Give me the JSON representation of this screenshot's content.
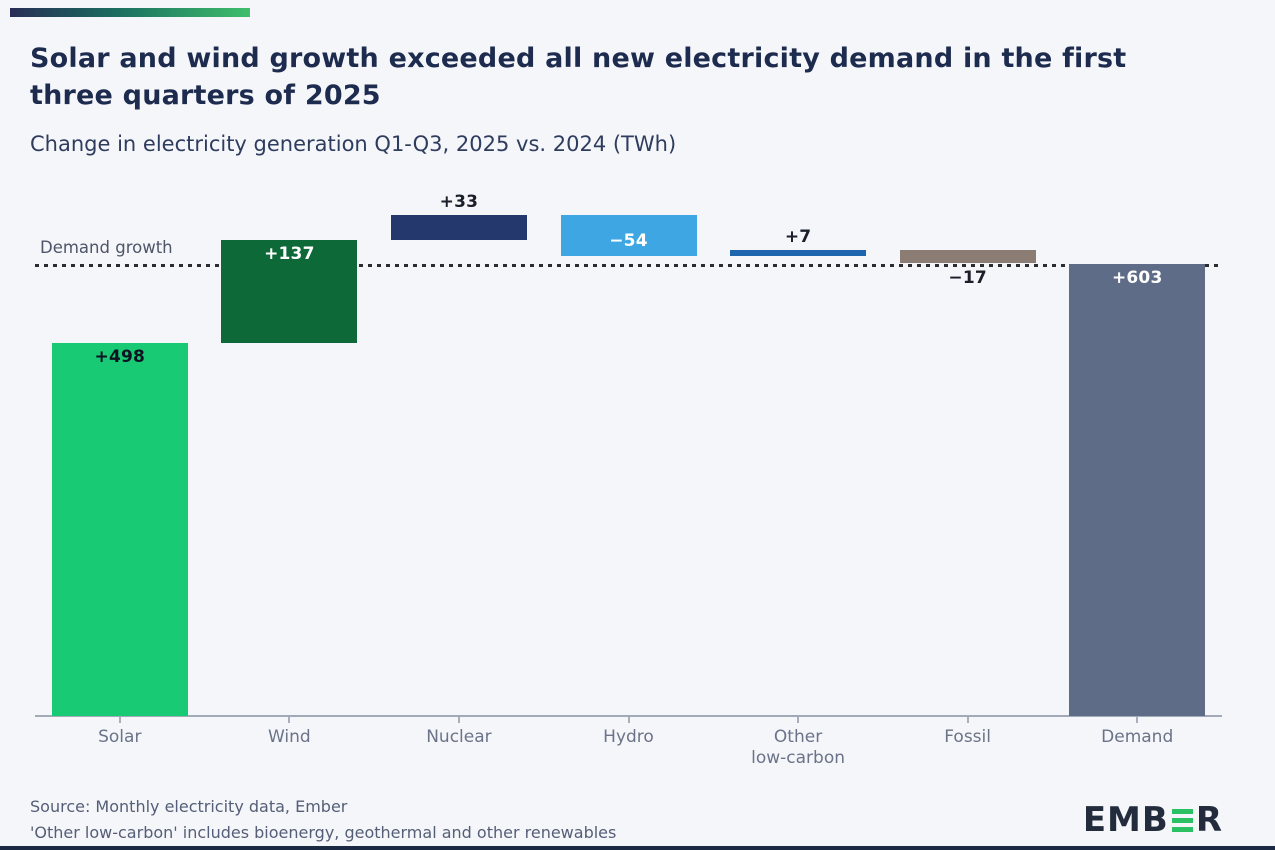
{
  "header": {
    "title": "Solar and wind growth exceeded all new electricity demand in the first three quarters of 2025",
    "subtitle": "Change in electricity generation Q1-Q3, 2025 vs. 2024 (TWh)"
  },
  "chart_data": {
    "type": "bar",
    "subtype": "waterfall",
    "title": "Solar and wind growth exceeded all new electricity demand in the first three quarters of 2025",
    "subtitle": "Change in electricity generation Q1-Q3, 2025 vs. 2024 (TWh)",
    "unit": "TWh",
    "xlabel": "",
    "ylabel": "Change in electricity generation (TWh)",
    "ylim": [
      0,
      710
    ],
    "grid": false,
    "legend": false,
    "categories": [
      "Solar",
      "Wind",
      "Nuclear",
      "Hydro",
      "Other low-carbon",
      "Fossil",
      "Demand"
    ],
    "values": [
      498,
      137,
      33,
      -54,
      7,
      -17,
      603
    ],
    "reference_line": {
      "label": "Demand growth",
      "value": 603,
      "style": "dotted",
      "color": "#2a2c2e"
    },
    "bars": [
      {
        "category": "Solar",
        "axis_label_lines": [
          "Solar"
        ],
        "value": 498,
        "value_label": "+498",
        "role": "step",
        "color": "#19ca74",
        "label_placement": "inside-top",
        "label_color": "#0d1321"
      },
      {
        "category": "Wind",
        "axis_label_lines": [
          "Wind"
        ],
        "value": 137,
        "value_label": "+137",
        "role": "step",
        "color": "#0d6a38",
        "label_placement": "inside-top",
        "label_color": "#ffffff"
      },
      {
        "category": "Nuclear",
        "axis_label_lines": [
          "Nuclear"
        ],
        "value": 33,
        "value_label": "+33",
        "role": "step",
        "color": "#24386e",
        "label_placement": "above",
        "label_color": "#1a1f29"
      },
      {
        "category": "Hydro",
        "axis_label_lines": [
          "Hydro"
        ],
        "value": -54,
        "value_label": "−54",
        "role": "step",
        "color": "#3ea7e3",
        "label_placement": "inside-bottom",
        "label_color": "#ffffff"
      },
      {
        "category": "Other low-carbon",
        "axis_label_lines": [
          "Other",
          "low-carbon"
        ],
        "value": 7,
        "value_label": "+7",
        "role": "step",
        "color": "#1d66ae",
        "label_placement": "above",
        "label_color": "#1a1f29"
      },
      {
        "category": "Fossil",
        "axis_label_lines": [
          "Fossil"
        ],
        "value": -17,
        "value_label": "−17",
        "role": "step",
        "color": "#8b7d73",
        "label_placement": "below",
        "label_color": "#1a1f29"
      },
      {
        "category": "Demand",
        "axis_label_lines": [
          "Demand"
        ],
        "value": 603,
        "value_label": "+603",
        "role": "total",
        "color": "#5f6c87",
        "label_placement": "inside-top",
        "label_color": "#ffffff"
      }
    ]
  },
  "footer": {
    "source_line1": "Source: Monthly electricity data, Ember",
    "source_line2": "'Other low-carbon' includes bioenergy, geothermal and other renewables",
    "logo_text_left": "EMB",
    "logo_text_right": "R"
  },
  "colors": {
    "background": "#f5f6fa",
    "title": "#1d2b4e",
    "accent_gradient_start": "#272d56",
    "accent_gradient_end": "#3fbe6c",
    "axis": "#a2aab8",
    "category_label": "#6a7388",
    "logo_navy": "#222c3c",
    "logo_green": "#2bc162"
  }
}
